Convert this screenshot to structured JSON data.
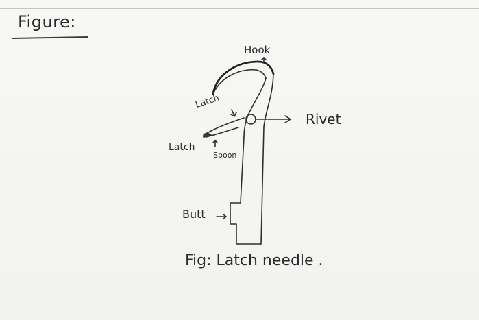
{
  "heading": "Figure:",
  "labels": {
    "hook": "Hook",
    "latch": "Latch",
    "rivet": "Rivet",
    "latch_spoon_1": "Latch",
    "latch_spoon_2": "Spoon",
    "butt": "Butt"
  },
  "caption": "Fig: Latch needle ."
}
